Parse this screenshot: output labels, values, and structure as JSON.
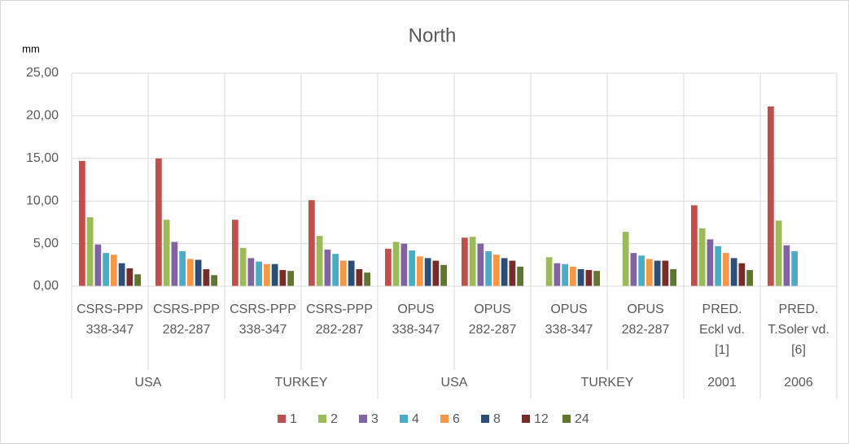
{
  "chart_data": {
    "type": "bar",
    "title": "North",
    "y_unit": "mm",
    "groups": [
      {
        "name": "USA",
        "categories": [
          [
            "CSRS-PPP",
            "338-347"
          ],
          [
            "CSRS-PPP",
            "282-287"
          ]
        ]
      },
      {
        "name": "TURKEY",
        "categories": [
          [
            "CSRS-PPP",
            "338-347"
          ],
          [
            "CSRS-PPP",
            "282-287"
          ]
        ]
      },
      {
        "name": "USA",
        "categories": [
          [
            "OPUS",
            "338-347"
          ],
          [
            "OPUS",
            "282-287"
          ]
        ]
      },
      {
        "name": "TURKEY",
        "categories": [
          [
            "OPUS",
            "338-347"
          ],
          [
            "OPUS",
            "282-287"
          ]
        ]
      },
      {
        "name": "2001",
        "categories": [
          [
            "PRED.",
            "Eckl vd.",
            "[1]"
          ]
        ]
      },
      {
        "name": "2006",
        "categories": [
          [
            "PRED.",
            "T.Soler vd.",
            "[6]"
          ]
        ]
      }
    ],
    "series": [
      {
        "name": "1",
        "color": "#c0504d",
        "values": [
          14.7,
          15.0,
          7.8,
          10.1,
          4.4,
          5.7,
          null,
          null,
          9.5,
          21.1
        ]
      },
      {
        "name": "2",
        "color": "#9bbb59",
        "values": [
          8.1,
          7.8,
          4.5,
          5.9,
          5.2,
          5.8,
          3.4,
          6.4,
          6.8,
          7.7
        ]
      },
      {
        "name": "3",
        "color": "#8064a2",
        "values": [
          4.9,
          5.2,
          3.3,
          4.3,
          5.0,
          5.0,
          2.7,
          3.9,
          5.5,
          4.8
        ]
      },
      {
        "name": "4",
        "color": "#4bacc6",
        "values": [
          3.9,
          4.1,
          2.9,
          3.8,
          4.2,
          4.1,
          2.6,
          3.6,
          4.7,
          4.1
        ]
      },
      {
        "name": "6",
        "color": "#f79646",
        "values": [
          3.7,
          3.2,
          2.6,
          3.0,
          3.5,
          3.7,
          2.3,
          3.2,
          3.9,
          null
        ]
      },
      {
        "name": "8",
        "color": "#2c4d75",
        "values": [
          2.7,
          3.1,
          2.6,
          3.0,
          3.3,
          3.3,
          2.0,
          3.0,
          3.3,
          null
        ]
      },
      {
        "name": "12",
        "color": "#772c2a",
        "values": [
          2.1,
          2.0,
          1.9,
          2.0,
          3.0,
          3.0,
          1.9,
          3.0,
          2.7,
          null
        ]
      },
      {
        "name": "24",
        "color": "#5f7530",
        "values": [
          1.4,
          1.3,
          1.8,
          1.6,
          2.5,
          2.3,
          1.8,
          2.0,
          1.9,
          null
        ]
      }
    ],
    "ylim": [
      0,
      25
    ],
    "yticks": [
      {
        "value": 0,
        "label": "0,00"
      },
      {
        "value": 5,
        "label": "5,00"
      },
      {
        "value": 10,
        "label": "10,00"
      },
      {
        "value": 15,
        "label": "15,00"
      },
      {
        "value": 20,
        "label": "20,00"
      },
      {
        "value": 25,
        "label": "25,00"
      }
    ],
    "grid": true,
    "legend": "bottom"
  }
}
